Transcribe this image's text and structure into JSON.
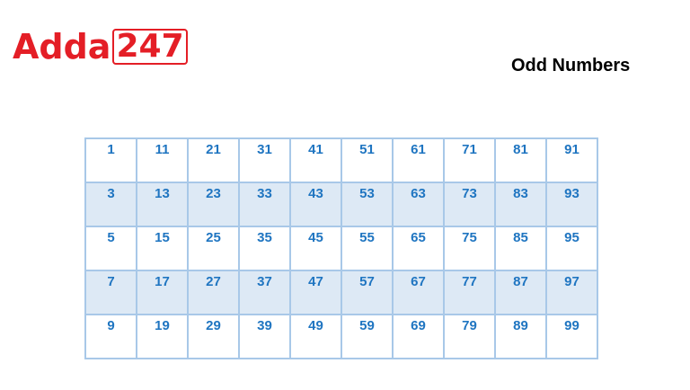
{
  "logo": {
    "text": "Adda",
    "badge": "247",
    "color": "#e41e26"
  },
  "title": "Odd Numbers",
  "colors": {
    "number": "#1f75c1",
    "border": "#a8c8e8",
    "alt_row": "#dde9f5"
  },
  "rows": [
    [
      "1",
      "11",
      "21",
      "31",
      "41",
      "51",
      "61",
      "71",
      "81",
      "91"
    ],
    [
      "3",
      "13",
      "23",
      "33",
      "43",
      "53",
      "63",
      "73",
      "83",
      "93"
    ],
    [
      "5",
      "15",
      "25",
      "35",
      "45",
      "55",
      "65",
      "75",
      "85",
      "95"
    ],
    [
      "7",
      "17",
      "27",
      "37",
      "47",
      "57",
      "67",
      "77",
      "87",
      "97"
    ],
    [
      "9",
      "19",
      "29",
      "39",
      "49",
      "59",
      "69",
      "79",
      "89",
      "99"
    ]
  ]
}
